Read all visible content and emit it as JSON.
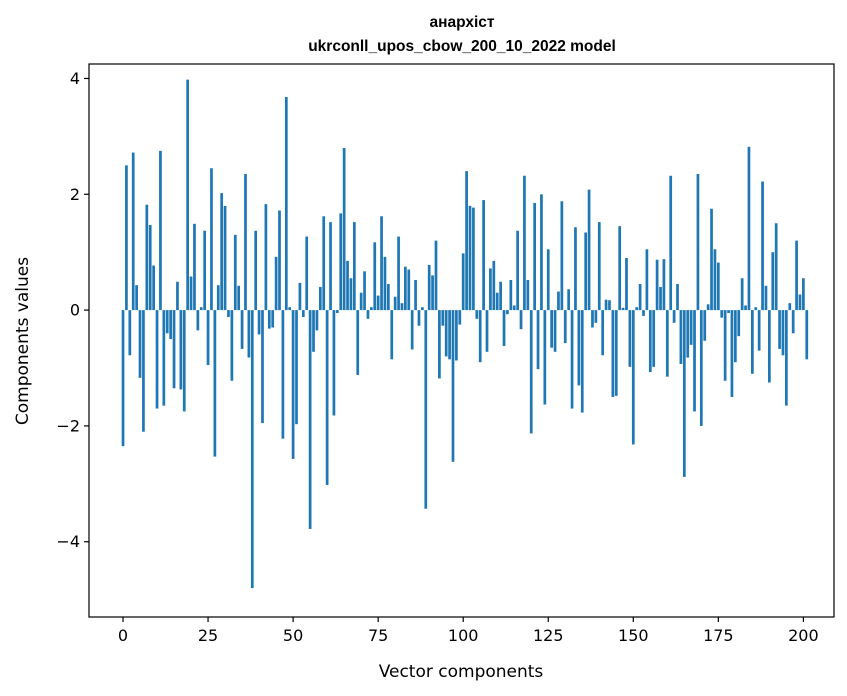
{
  "chart_data": {
    "type": "bar",
    "title": "анархіст",
    "subtitle": "ukrconll_upos_cbow_200_10_2022 model",
    "xlabel": "Vector components",
    "ylabel": "Components values",
    "xlim": [
      -10,
      209
    ],
    "ylim": [
      -5.3,
      4.25
    ],
    "xticks": [
      0,
      25,
      50,
      75,
      100,
      125,
      150,
      175,
      200
    ],
    "yticks": [
      -4,
      -2,
      0,
      2,
      4
    ],
    "xtick_labels": [
      "0",
      "25",
      "50",
      "75",
      "100",
      "125",
      "150",
      "175",
      "200"
    ],
    "ytick_labels": [
      "−4",
      "−2",
      "0",
      "2",
      "4"
    ],
    "bar_color": "#1f77b4",
    "grid": false,
    "values": [
      -2.35,
      2.5,
      -0.78,
      2.72,
      0.43,
      -1.17,
      -2.1,
      1.82,
      1.47,
      0.77,
      -1.7,
      2.75,
      -1.65,
      -0.4,
      -0.5,
      -1.35,
      0.49,
      -1.37,
      -1.75,
      3.98,
      0.58,
      1.49,
      -0.35,
      0.05,
      1.37,
      -0.95,
      2.45,
      -2.53,
      0.43,
      2.02,
      1.8,
      -0.12,
      -1.22,
      1.3,
      0.42,
      -0.67,
      2.35,
      -0.82,
      -4.8,
      1.37,
      -0.42,
      -1.95,
      1.83,
      -0.32,
      -0.3,
      0.92,
      1.72,
      -2.22,
      3.68,
      0.05,
      -2.57,
      -1.97,
      0.47,
      -0.12,
      1.27,
      -3.78,
      -0.72,
      -0.35,
      0.4,
      1.62,
      -3.02,
      1.52,
      -1.82,
      -0.05,
      1.67,
      2.8,
      0.85,
      0.55,
      1.52,
      -1.12,
      0.3,
      0.67,
      -0.15,
      0.05,
      1.17,
      0.25,
      1.62,
      0.92,
      0.45,
      -0.85,
      0.23,
      1.27,
      0.12,
      0.75,
      0.7,
      -0.68,
      0.52,
      -0.27,
      0.05,
      -3.43,
      0.78,
      0.6,
      1.2,
      -1.18,
      -0.27,
      -0.8,
      -0.85,
      -2.62,
      -0.87,
      -0.25,
      0.98,
      2.4,
      1.8,
      1.77,
      -0.15,
      -0.9,
      1.9,
      -0.72,
      0.72,
      0.85,
      0.3,
      0.49,
      -0.62,
      -0.07,
      0.52,
      0.08,
      1.37,
      -0.33,
      2.32,
      0.52,
      -2.13,
      1.85,
      -1.02,
      2.0,
      -1.63,
      1.05,
      -0.65,
      -0.72,
      0.32,
      1.88,
      -0.57,
      0.36,
      -1.7,
      1.43,
      -1.3,
      -1.77,
      1.34,
      2.08,
      -0.3,
      -0.22,
      1.52,
      -0.78,
      0.18,
      0.17,
      -1.5,
      -1.48,
      1.45,
      0.04,
      0.9,
      -0.98,
      -2.32,
      0.05,
      0.45,
      -0.1,
      1.05,
      -1.07,
      -0.98,
      0.87,
      0.4,
      0.88,
      -1.15,
      2.32,
      -0.22,
      0.45,
      -0.93,
      -2.88,
      -0.82,
      -0.6,
      -1.75,
      2.35,
      -2.0,
      -0.53,
      0.1,
      1.75,
      1.05,
      0.82,
      -0.13,
      -1.22,
      -0.05,
      -1.5,
      -0.9,
      -0.45,
      0.55,
      0.08,
      2.82,
      -1.1,
      0.05,
      -0.7,
      2.22,
      0.42,
      -1.25,
      1.0,
      1.5,
      -0.67,
      -0.78,
      -1.65,
      0.12,
      -0.4,
      1.2,
      0.27,
      0.55,
      -0.85
    ]
  }
}
